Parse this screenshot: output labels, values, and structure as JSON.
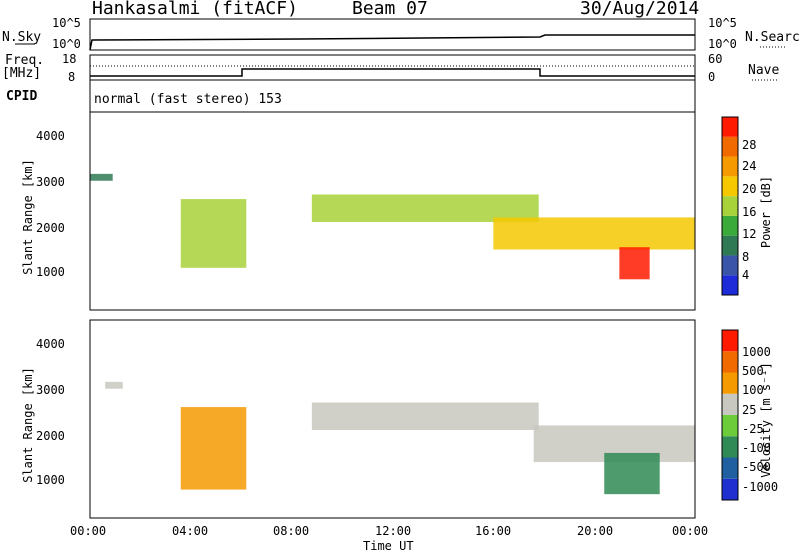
{
  "header": {
    "station": "Hankasalmi (fitACF)",
    "beam": "Beam 07",
    "date": "30/Aug/2014"
  },
  "side_labels": {
    "nsky": "N.Sky",
    "freq_line1": "Freq.",
    "freq_line2": "[MHz]",
    "cpid": "CPID",
    "nsearch": "N.Search",
    "nave": "Nave"
  },
  "top_axes": {
    "noise_ticks_left": [
      "10^5",
      "10^0"
    ],
    "noise_ticks_right": [
      "10^5",
      "10^0"
    ],
    "freq_ticks": [
      "18",
      "8"
    ],
    "nave_ticks": [
      "60",
      "0"
    ]
  },
  "cpid_text": "normal (fast stereo) 153",
  "chart_data": [
    {
      "type": "heatmap",
      "name": "power",
      "ylabel": "Slant Range [km]",
      "y_ticks": [
        "4000",
        "3000",
        "2000",
        "1000"
      ],
      "ylim": [
        180,
        4500
      ],
      "colorbar_label": "Power [dB]",
      "colorbar_ticks": [
        "28",
        "24",
        "20",
        "16",
        "12",
        "8",
        "4"
      ],
      "colorbar_colors": [
        "#1e2bd8",
        "#3a55a8",
        "#2f7a55",
        "#3aaa3a",
        "#a8d23a",
        "#f5c800",
        "#f59a00",
        "#f06a00",
        "#ff1a00"
      ],
      "bands": [
        {
          "t": [
            0.0,
            0.9
          ],
          "r": [
            3000,
            3150
          ],
          "level": 0.3
        },
        {
          "t": [
            3.6,
            6.2
          ],
          "r": [
            1100,
            2600
          ],
          "level": 0.55
        },
        {
          "t": [
            8.8,
            17.8
          ],
          "r": [
            2100,
            2700
          ],
          "level": 0.5
        },
        {
          "t": [
            16.0,
            24.0
          ],
          "r": [
            1500,
            2200
          ],
          "level": 0.65
        },
        {
          "t": [
            21.0,
            22.2
          ],
          "r": [
            850,
            1550
          ],
          "level": 0.98
        }
      ]
    },
    {
      "type": "heatmap",
      "name": "velocity",
      "ylabel": "Slant Range [km]",
      "y_ticks": [
        "4000",
        "3000",
        "2000",
        "1000"
      ],
      "ylim": [
        180,
        4500
      ],
      "colorbar_label": "Velocity [m s⁻¹]",
      "colorbar_ticks": [
        "1000",
        "500",
        "100",
        "25",
        "-25",
        "-100",
        "-500",
        "-1000"
      ],
      "colorbar_colors": [
        "#2030d0",
        "#2060a0",
        "#2f8a55",
        "#6ccc3a",
        "#c8c8c0",
        "#f59a00",
        "#f06a00",
        "#ff1a00"
      ],
      "bands": [
        {
          "t": [
            0.6,
            1.3
          ],
          "r": [
            3000,
            3150
          ],
          "color": "grey"
        },
        {
          "t": [
            3.6,
            6.2
          ],
          "r": [
            800,
            2600
          ],
          "color": "orange"
        },
        {
          "t": [
            8.8,
            17.8
          ],
          "r": [
            2100,
            2700
          ],
          "color": "grey"
        },
        {
          "t": [
            17.6,
            24.0
          ],
          "r": [
            1400,
            2200
          ],
          "color": "grey"
        },
        {
          "t": [
            20.4,
            22.6
          ],
          "r": [
            700,
            1600
          ],
          "color": "green"
        }
      ]
    }
  ],
  "time_axis": {
    "ticks": [
      "00:00",
      "04:00",
      "08:00",
      "12:00",
      "16:00",
      "20:00",
      "00:00"
    ],
    "label": "Time UT"
  }
}
